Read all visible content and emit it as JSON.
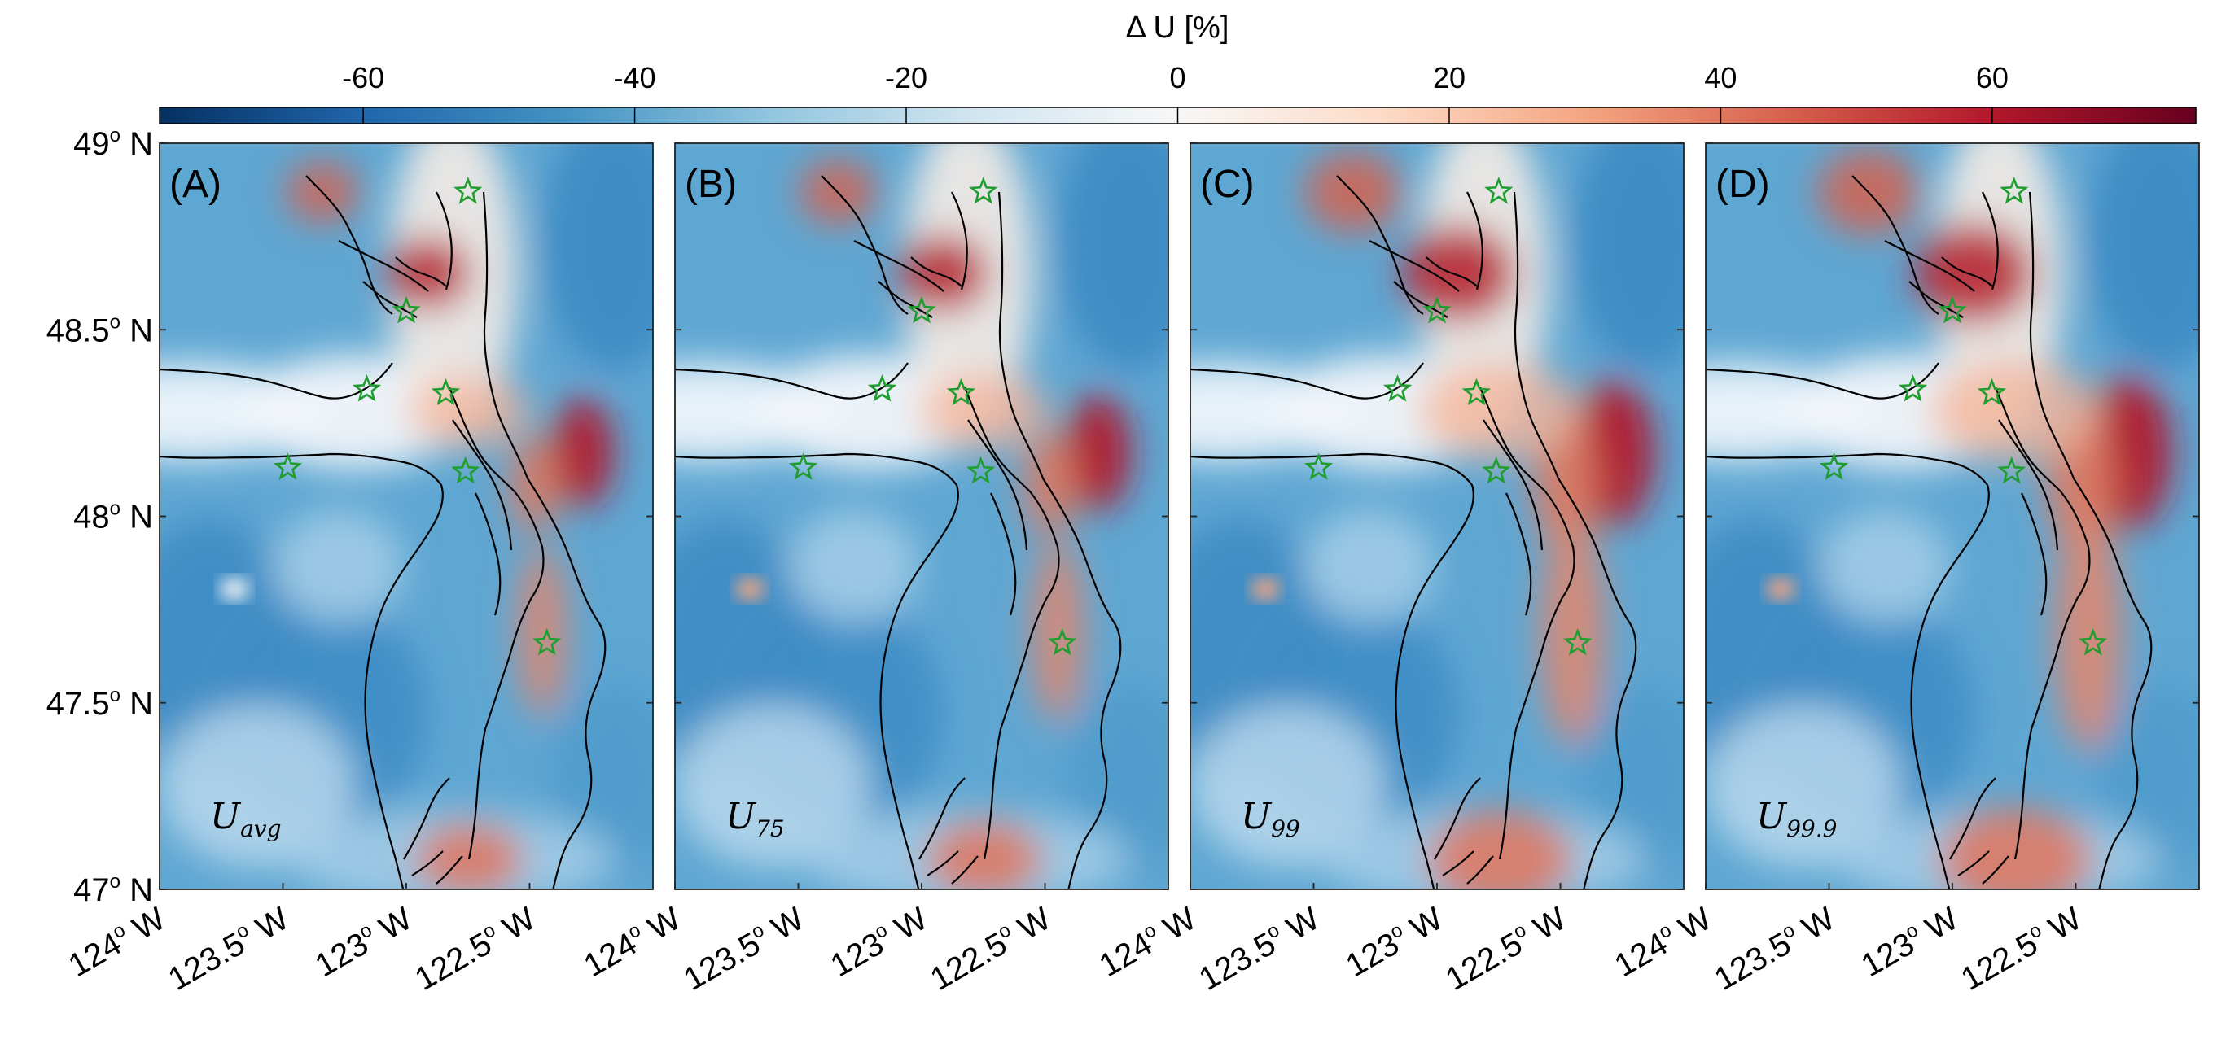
{
  "colorbar": {
    "title": "Δ U [%]",
    "ticks": [
      "-60",
      "-40",
      "-20",
      "0",
      "20",
      "40",
      "60"
    ],
    "tick_values": [
      -60,
      -40,
      -20,
      0,
      20,
      40,
      60
    ],
    "range": [
      -75,
      75
    ],
    "colors": {
      "min": "#053061",
      "low": "#2166ac",
      "midlow": "#4393c3",
      "light_blue": "#92c5de",
      "near_white_blue": "#d1e5f0",
      "zero": "#f7f7f7",
      "near_white_red": "#fddbc7",
      "light_red": "#f4a582",
      "midhigh": "#d6604d",
      "high": "#b2182b",
      "max": "#67001f"
    }
  },
  "axes": {
    "lat_labels": [
      {
        "value": "49",
        "unit": "o",
        "hemi": " N"
      },
      {
        "value": "48.5",
        "unit": "o",
        "hemi": " N"
      },
      {
        "value": "48",
        "unit": "o",
        "hemi": " N"
      },
      {
        "value": "47.5",
        "unit": "o",
        "hemi": " N"
      },
      {
        "value": "47",
        "unit": "o",
        "hemi": " N"
      }
    ],
    "lon_labels": [
      {
        "value": "124",
        "unit": "o",
        "hemi": " W"
      },
      {
        "value": "123.5",
        "unit": "o",
        "hemi": " W"
      },
      {
        "value": "123",
        "unit": "o",
        "hemi": " W"
      },
      {
        "value": "122.5",
        "unit": "o",
        "hemi": " W"
      }
    ],
    "lat_range": [
      47,
      49
    ],
    "lon_range": [
      -124,
      -122
    ]
  },
  "panels": [
    {
      "label": "(A)",
      "quantity_base": "U",
      "quantity_sub": "avg",
      "intensity": 0.75
    },
    {
      "label": "(B)",
      "quantity_base": "U",
      "quantity_sub": "75",
      "intensity": 0.8
    },
    {
      "label": "(C)",
      "quantity_base": "U",
      "quantity_sub": "99",
      "intensity": 1.0
    },
    {
      "label": "(D)",
      "quantity_base": "U",
      "quantity_sub": "99.9",
      "intensity": 1.05
    }
  ],
  "stations": [
    {
      "lon": -122.75,
      "lat": 48.87
    },
    {
      "lon": -123.0,
      "lat": 48.55
    },
    {
      "lon": -123.16,
      "lat": 48.34
    },
    {
      "lon": -122.84,
      "lat": 48.33
    },
    {
      "lon": -123.48,
      "lat": 48.13
    },
    {
      "lon": -122.76,
      "lat": 48.12
    },
    {
      "lon": -122.43,
      "lat": 47.66
    }
  ],
  "colors": {
    "star": "#1f9e2f",
    "coast": "#000000"
  }
}
